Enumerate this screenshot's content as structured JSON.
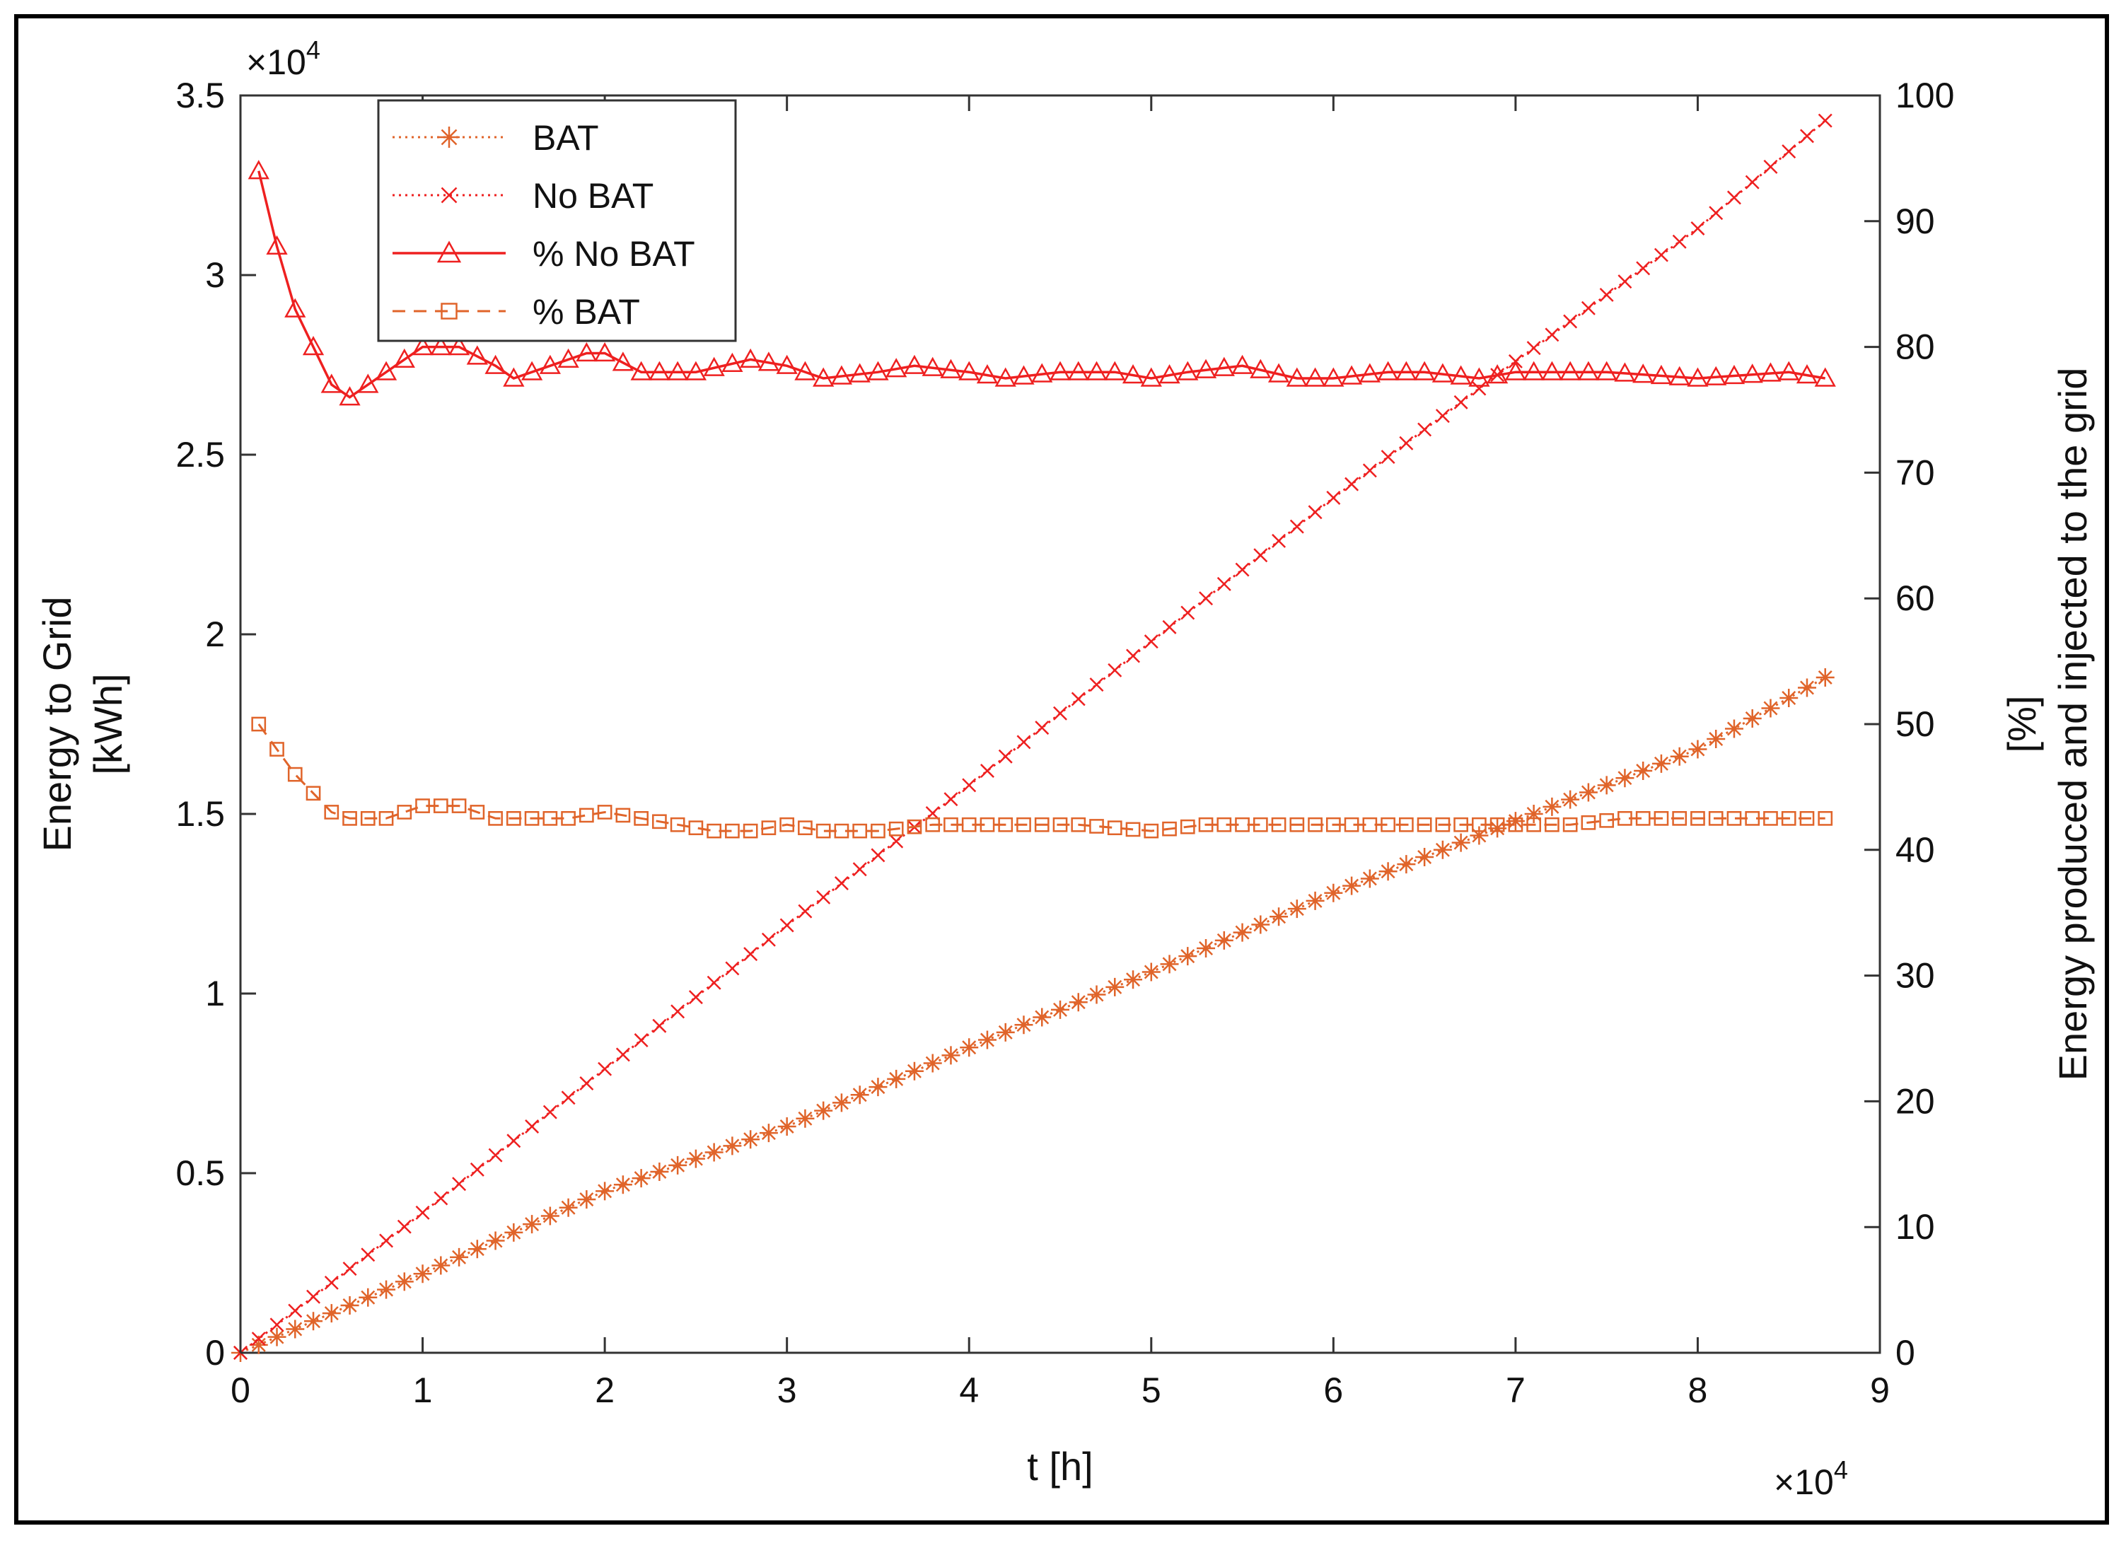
{
  "chart_data": {
    "type": "line",
    "xlabel": "t [h]",
    "x_multiplier": "×10",
    "x_multiplier_exp": "4",
    "ylabel_left_lines": [
      "Energy to Grid",
      "[kWh]"
    ],
    "y_left_multiplier": "×10",
    "y_left_multiplier_exp": "4",
    "ylabel_right_lines": [
      "Energy produced and injected to the grid",
      "[%]"
    ],
    "xlim": [
      0,
      90000
    ],
    "ylim_left": [
      0,
      35000
    ],
    "ylim_right": [
      0,
      100
    ],
    "x_ticks": [
      0,
      10000,
      20000,
      30000,
      40000,
      50000,
      60000,
      70000,
      80000,
      90000
    ],
    "x_tick_labels": [
      "0",
      "1",
      "2",
      "3",
      "4",
      "5",
      "6",
      "7",
      "8",
      "9"
    ],
    "y_left_ticks": [
      0,
      5000,
      10000,
      15000,
      20000,
      25000,
      30000,
      35000
    ],
    "y_left_tick_labels": [
      "0",
      "0.5",
      "1",
      "1.5",
      "2",
      "2.5",
      "3",
      "3.5"
    ],
    "y_right_ticks": [
      0,
      10,
      20,
      30,
      40,
      50,
      60,
      70,
      80,
      90,
      100
    ],
    "y_right_tick_labels": [
      "0",
      "10",
      "20",
      "30",
      "40",
      "50",
      "60",
      "70",
      "80",
      "90",
      "100"
    ],
    "legend_position": "top-left",
    "grid": false,
    "series": [
      {
        "name": "BAT",
        "axis": "left",
        "color": "#e0642a",
        "line": "dotted",
        "marker": "asterisk",
        "x": [
          0,
          10000,
          20000,
          30000,
          40000,
          50000,
          60000,
          70000,
          80000,
          87000
        ],
        "y": [
          0,
          2200,
          4500,
          6300,
          8500,
          10600,
          12800,
          14800,
          16800,
          18800
        ]
      },
      {
        "name": "No BAT",
        "axis": "left",
        "color": "#ee2020",
        "line": "dotted",
        "marker": "x",
        "x": [
          0,
          10000,
          20000,
          30000,
          40000,
          50000,
          60000,
          70000,
          80000,
          87000
        ],
        "y": [
          0,
          3900,
          7900,
          11900,
          15800,
          19800,
          23800,
          27600,
          31300,
          34300
        ]
      },
      {
        "name": "% No BAT",
        "axis": "right",
        "color": "#ee2020",
        "line": "solid",
        "marker": "triangle",
        "x": [
          1000,
          2000,
          3000,
          4000,
          5000,
          6000,
          7000,
          8000,
          9000,
          10000,
          12000,
          14000,
          15000,
          17000,
          19000,
          20000,
          22000,
          25000,
          28000,
          30000,
          32000,
          35000,
          37000,
          40000,
          42000,
          45000,
          48000,
          50000,
          52000,
          55000,
          58000,
          60000,
          63000,
          65000,
          68000,
          70000,
          75000,
          80000,
          85000,
          87000
        ],
        "y": [
          94,
          88,
          83,
          80,
          77,
          76,
          77,
          78,
          79,
          80,
          80,
          78.5,
          77.5,
          78.5,
          79.5,
          79.5,
          78,
          78,
          79,
          78.5,
          77.5,
          78,
          78.5,
          78,
          77.5,
          78,
          78,
          77.5,
          78,
          78.5,
          77.5,
          77.5,
          78,
          78,
          77.5,
          78,
          78,
          77.5,
          78,
          77.5
        ]
      },
      {
        "name": "% BAT",
        "axis": "right",
        "color": "#e0642a",
        "line": "dashed",
        "marker": "square",
        "x": [
          1000,
          2000,
          3000,
          4000,
          5000,
          6000,
          8000,
          10000,
          12000,
          14000,
          16000,
          18000,
          20000,
          22000,
          24000,
          26000,
          28000,
          30000,
          32000,
          35000,
          38000,
          40000,
          43000,
          46000,
          50000,
          53000,
          56000,
          60000,
          63000,
          66000,
          70000,
          73000,
          76000,
          80000,
          83000,
          86000,
          87000
        ],
        "y": [
          50,
          48,
          46,
          44.5,
          43,
          42.5,
          42.5,
          43.5,
          43.5,
          42.5,
          42.5,
          42.5,
          43,
          42.5,
          42,
          41.5,
          41.5,
          42,
          41.5,
          41.5,
          42,
          42,
          42,
          42,
          41.5,
          42,
          42,
          42,
          42,
          42,
          42,
          42,
          42.5,
          42.5,
          42.5,
          42.5,
          42.5
        ]
      }
    ]
  }
}
